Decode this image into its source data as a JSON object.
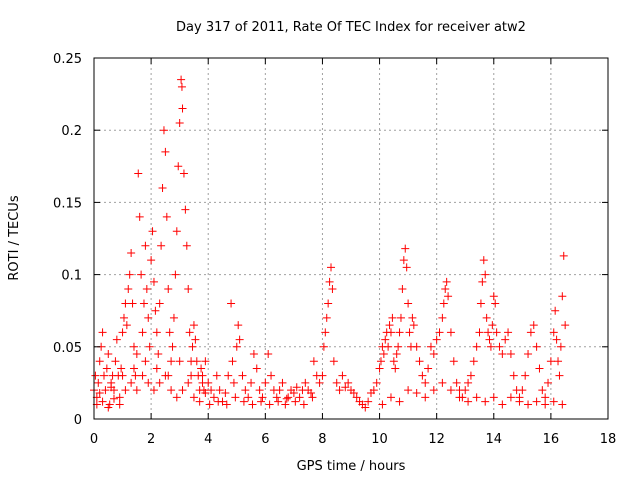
{
  "chart_data": {
    "type": "scatter",
    "title": "Day 317 of 2011, Rate Of TEC Index for receiver atw2",
    "xlabel": "GPS time / hours",
    "ylabel": "ROTI / TECUs",
    "xlim": [
      0,
      18
    ],
    "ylim": [
      0,
      0.25
    ],
    "x_ticks": [
      0,
      2,
      4,
      6,
      8,
      10,
      12,
      14,
      16,
      18
    ],
    "x_tick_labels": [
      "0",
      "2",
      "4",
      "6",
      "8",
      "10",
      "12",
      "14",
      "16",
      "18"
    ],
    "y_ticks": [
      0,
      0.05,
      0.1,
      0.15,
      0.2,
      0.25
    ],
    "y_tick_labels": [
      "0",
      "0.05",
      "0.1",
      "0.15",
      "0.2",
      "0.25"
    ],
    "grid": true,
    "marker": "+",
    "marker_color": "#ff0000",
    "series": [
      {
        "name": "ROTI",
        "points": [
          [
            0.0,
            0.02
          ],
          [
            0.05,
            0.03
          ],
          [
            0.1,
            0.015
          ],
          [
            0.15,
            0.025
          ],
          [
            0.2,
            0.04
          ],
          [
            0.25,
            0.05
          ],
          [
            0.3,
            0.06
          ],
          [
            0.35,
            0.03
          ],
          [
            0.4,
            0.02
          ],
          [
            0.45,
            0.035
          ],
          [
            0.5,
            0.045
          ],
          [
            0.55,
            0.01
          ],
          [
            0.6,
            0.025
          ],
          [
            0.65,
            0.03
          ],
          [
            0.7,
            0.02
          ],
          [
            0.75,
            0.04
          ],
          [
            0.8,
            0.055
          ],
          [
            0.85,
            0.03
          ],
          [
            0.9,
            0.015
          ],
          [
            0.95,
            0.035
          ],
          [
            1.0,
            0.06
          ],
          [
            1.05,
            0.07
          ],
          [
            1.1,
            0.08
          ],
          [
            1.15,
            0.065
          ],
          [
            1.2,
            0.09
          ],
          [
            1.25,
            0.1
          ],
          [
            1.3,
            0.115
          ],
          [
            1.35,
            0.08
          ],
          [
            1.4,
            0.05
          ],
          [
            1.45,
            0.03
          ],
          [
            1.5,
            0.045
          ],
          [
            1.55,
            0.17
          ],
          [
            1.6,
            0.14
          ],
          [
            1.65,
            0.1
          ],
          [
            1.7,
            0.06
          ],
          [
            1.75,
            0.08
          ],
          [
            1.8,
            0.12
          ],
          [
            1.85,
            0.09
          ],
          [
            1.9,
            0.07
          ],
          [
            1.95,
            0.05
          ],
          [
            2.0,
            0.11
          ],
          [
            2.05,
            0.13
          ],
          [
            2.1,
            0.095
          ],
          [
            2.15,
            0.075
          ],
          [
            2.2,
            0.06
          ],
          [
            2.25,
            0.045
          ],
          [
            2.3,
            0.08
          ],
          [
            2.35,
            0.12
          ],
          [
            2.4,
            0.16
          ],
          [
            2.45,
            0.2
          ],
          [
            2.5,
            0.185
          ],
          [
            2.55,
            0.14
          ],
          [
            2.6,
            0.09
          ],
          [
            2.65,
            0.06
          ],
          [
            2.7,
            0.04
          ],
          [
            2.75,
            0.05
          ],
          [
            2.8,
            0.07
          ],
          [
            2.85,
            0.1
          ],
          [
            2.9,
            0.13
          ],
          [
            2.95,
            0.175
          ],
          [
            3.0,
            0.205
          ],
          [
            3.05,
            0.235
          ],
          [
            3.08,
            0.23
          ],
          [
            3.1,
            0.215
          ],
          [
            3.15,
            0.17
          ],
          [
            3.2,
            0.145
          ],
          [
            3.25,
            0.12
          ],
          [
            3.3,
            0.09
          ],
          [
            3.35,
            0.06
          ],
          [
            3.4,
            0.04
          ],
          [
            3.45,
            0.05
          ],
          [
            3.5,
            0.065
          ],
          [
            3.55,
            0.055
          ],
          [
            3.6,
            0.04
          ],
          [
            3.65,
            0.03
          ],
          [
            3.7,
            0.02
          ],
          [
            3.75,
            0.035
          ],
          [
            3.8,
            0.03
          ],
          [
            3.85,
            0.02
          ],
          [
            3.9,
            0.04
          ],
          [
            0.1,
            0.01
          ],
          [
            0.3,
            0.012
          ],
          [
            0.5,
            0.008
          ],
          [
            0.7,
            0.014
          ],
          [
            0.9,
            0.01
          ],
          [
            1.1,
            0.02
          ],
          [
            1.3,
            0.025
          ],
          [
            1.5,
            0.02
          ],
          [
            1.7,
            0.03
          ],
          [
            1.9,
            0.025
          ],
          [
            2.1,
            0.02
          ],
          [
            2.3,
            0.025
          ],
          [
            2.5,
            0.03
          ],
          [
            2.7,
            0.02
          ],
          [
            2.9,
            0.015
          ],
          [
            3.1,
            0.02
          ],
          [
            3.3,
            0.025
          ],
          [
            3.5,
            0.015
          ],
          [
            3.7,
            0.012
          ],
          [
            3.9,
            0.018
          ],
          [
            0.2,
            0.018
          ],
          [
            0.6,
            0.022
          ],
          [
            1.0,
            0.03
          ],
          [
            1.4,
            0.035
          ],
          [
            1.8,
            0.04
          ],
          [
            2.2,
            0.035
          ],
          [
            2.6,
            0.03
          ],
          [
            3.0,
            0.04
          ],
          [
            3.4,
            0.03
          ],
          [
            3.8,
            0.025
          ],
          [
            4.0,
            0.025
          ],
          [
            4.1,
            0.02
          ],
          [
            4.2,
            0.015
          ],
          [
            4.3,
            0.03
          ],
          [
            4.4,
            0.02
          ],
          [
            4.5,
            0.012
          ],
          [
            4.6,
            0.018
          ],
          [
            4.7,
            0.03
          ],
          [
            4.8,
            0.08
          ],
          [
            4.85,
            0.04
          ],
          [
            4.9,
            0.025
          ],
          [
            5.0,
            0.05
          ],
          [
            5.05,
            0.065
          ],
          [
            5.1,
            0.055
          ],
          [
            5.2,
            0.03
          ],
          [
            5.3,
            0.02
          ],
          [
            5.4,
            0.015
          ],
          [
            5.5,
            0.025
          ],
          [
            5.6,
            0.045
          ],
          [
            5.7,
            0.035
          ],
          [
            5.8,
            0.02
          ],
          [
            5.9,
            0.015
          ],
          [
            6.0,
            0.025
          ],
          [
            6.1,
            0.045
          ],
          [
            6.2,
            0.03
          ],
          [
            6.3,
            0.02
          ],
          [
            6.4,
            0.015
          ],
          [
            6.5,
            0.02
          ],
          [
            6.6,
            0.025
          ],
          [
            6.7,
            0.01
          ],
          [
            6.8,
            0.015
          ],
          [
            6.9,
            0.02
          ],
          [
            7.0,
            0.018
          ],
          [
            7.1,
            0.022
          ],
          [
            7.2,
            0.015
          ],
          [
            7.3,
            0.02
          ],
          [
            7.4,
            0.025
          ],
          [
            7.5,
            0.02
          ],
          [
            7.6,
            0.018
          ],
          [
            7.7,
            0.04
          ],
          [
            4.05,
            0.01
          ],
          [
            4.35,
            0.012
          ],
          [
            4.65,
            0.01
          ],
          [
            4.95,
            0.015
          ],
          [
            5.25,
            0.012
          ],
          [
            5.55,
            0.01
          ],
          [
            5.85,
            0.012
          ],
          [
            6.15,
            0.01
          ],
          [
            6.45,
            0.012
          ],
          [
            6.75,
            0.014
          ],
          [
            7.05,
            0.012
          ],
          [
            7.35,
            0.01
          ],
          [
            7.65,
            0.015
          ],
          [
            7.8,
            0.03
          ],
          [
            7.9,
            0.025
          ],
          [
            8.0,
            0.03
          ],
          [
            8.05,
            0.05
          ],
          [
            8.1,
            0.06
          ],
          [
            8.15,
            0.07
          ],
          [
            8.2,
            0.08
          ],
          [
            8.25,
            0.095
          ],
          [
            8.3,
            0.105
          ],
          [
            8.35,
            0.09
          ],
          [
            8.4,
            0.04
          ],
          [
            8.5,
            0.025
          ],
          [
            8.6,
            0.02
          ],
          [
            8.7,
            0.03
          ],
          [
            8.8,
            0.022
          ],
          [
            8.9,
            0.025
          ],
          [
            9.0,
            0.02
          ],
          [
            9.1,
            0.018
          ],
          [
            9.2,
            0.015
          ],
          [
            9.3,
            0.012
          ],
          [
            9.4,
            0.01
          ],
          [
            9.5,
            0.008
          ],
          [
            9.6,
            0.012
          ],
          [
            9.7,
            0.018
          ],
          [
            9.8,
            0.02
          ],
          [
            9.9,
            0.025
          ],
          [
            10.0,
            0.035
          ],
          [
            10.05,
            0.04
          ],
          [
            10.1,
            0.05
          ],
          [
            10.15,
            0.045
          ],
          [
            10.2,
            0.055
          ],
          [
            10.25,
            0.06
          ],
          [
            10.3,
            0.05
          ],
          [
            10.35,
            0.065
          ],
          [
            10.4,
            0.06
          ],
          [
            10.45,
            0.07
          ],
          [
            10.5,
            0.04
          ],
          [
            10.55,
            0.035
          ],
          [
            10.6,
            0.045
          ],
          [
            10.65,
            0.05
          ],
          [
            10.7,
            0.06
          ],
          [
            10.75,
            0.07
          ],
          [
            10.8,
            0.09
          ],
          [
            10.85,
            0.11
          ],
          [
            10.9,
            0.118
          ],
          [
            10.95,
            0.105
          ],
          [
            11.0,
            0.08
          ],
          [
            11.05,
            0.06
          ],
          [
            11.1,
            0.05
          ],
          [
            11.15,
            0.07
          ],
          [
            11.2,
            0.065
          ],
          [
            11.3,
            0.05
          ],
          [
            11.4,
            0.04
          ],
          [
            11.5,
            0.03
          ],
          [
            11.6,
            0.025
          ],
          [
            11.7,
            0.035
          ],
          [
            11.8,
            0.05
          ],
          [
            11.9,
            0.045
          ],
          [
            12.0,
            0.055
          ],
          [
            12.1,
            0.06
          ],
          [
            12.2,
            0.07
          ],
          [
            12.25,
            0.08
          ],
          [
            12.3,
            0.09
          ],
          [
            12.35,
            0.095
          ],
          [
            12.4,
            0.085
          ],
          [
            12.5,
            0.06
          ],
          [
            12.6,
            0.04
          ],
          [
            12.7,
            0.025
          ],
          [
            12.8,
            0.02
          ],
          [
            12.9,
            0.015
          ],
          [
            13.0,
            0.02
          ],
          [
            13.1,
            0.025
          ],
          [
            13.2,
            0.03
          ],
          [
            13.3,
            0.04
          ],
          [
            13.4,
            0.05
          ],
          [
            13.5,
            0.06
          ],
          [
            13.55,
            0.08
          ],
          [
            13.6,
            0.095
          ],
          [
            13.65,
            0.11
          ],
          [
            13.7,
            0.1
          ],
          [
            13.75,
            0.07
          ],
          [
            13.8,
            0.06
          ],
          [
            13.85,
            0.055
          ],
          [
            13.9,
            0.05
          ],
          [
            13.95,
            0.065
          ],
          [
            14.0,
            0.085
          ],
          [
            14.05,
            0.08
          ],
          [
            14.1,
            0.06
          ],
          [
            14.2,
            0.05
          ],
          [
            14.3,
            0.045
          ],
          [
            14.4,
            0.055
          ],
          [
            14.5,
            0.06
          ],
          [
            14.6,
            0.045
          ],
          [
            14.7,
            0.03
          ],
          [
            14.8,
            0.02
          ],
          [
            14.9,
            0.015
          ],
          [
            15.0,
            0.02
          ],
          [
            15.1,
            0.03
          ],
          [
            15.2,
            0.045
          ],
          [
            15.3,
            0.06
          ],
          [
            15.4,
            0.065
          ],
          [
            15.5,
            0.05
          ],
          [
            15.6,
            0.035
          ],
          [
            15.7,
            0.02
          ],
          [
            15.8,
            0.015
          ],
          [
            15.9,
            0.025
          ],
          [
            16.0,
            0.04
          ],
          [
            16.1,
            0.06
          ],
          [
            16.15,
            0.075
          ],
          [
            16.2,
            0.055
          ],
          [
            16.25,
            0.04
          ],
          [
            16.3,
            0.03
          ],
          [
            16.35,
            0.05
          ],
          [
            16.4,
            0.085
          ],
          [
            16.45,
            0.113
          ],
          [
            16.5,
            0.065
          ],
          [
            10.1,
            0.01
          ],
          [
            10.4,
            0.015
          ],
          [
            10.7,
            0.012
          ],
          [
            11.0,
            0.02
          ],
          [
            11.3,
            0.018
          ],
          [
            11.6,
            0.015
          ],
          [
            11.9,
            0.02
          ],
          [
            12.2,
            0.025
          ],
          [
            12.5,
            0.02
          ],
          [
            12.8,
            0.015
          ],
          [
            13.1,
            0.012
          ],
          [
            13.4,
            0.015
          ],
          [
            13.7,
            0.012
          ],
          [
            14.0,
            0.015
          ],
          [
            14.3,
            0.01
          ],
          [
            14.6,
            0.015
          ],
          [
            14.9,
            0.012
          ],
          [
            15.2,
            0.01
          ],
          [
            15.5,
            0.012
          ],
          [
            15.8,
            0.01
          ],
          [
            16.1,
            0.012
          ],
          [
            16.4,
            0.01
          ]
        ]
      }
    ]
  }
}
